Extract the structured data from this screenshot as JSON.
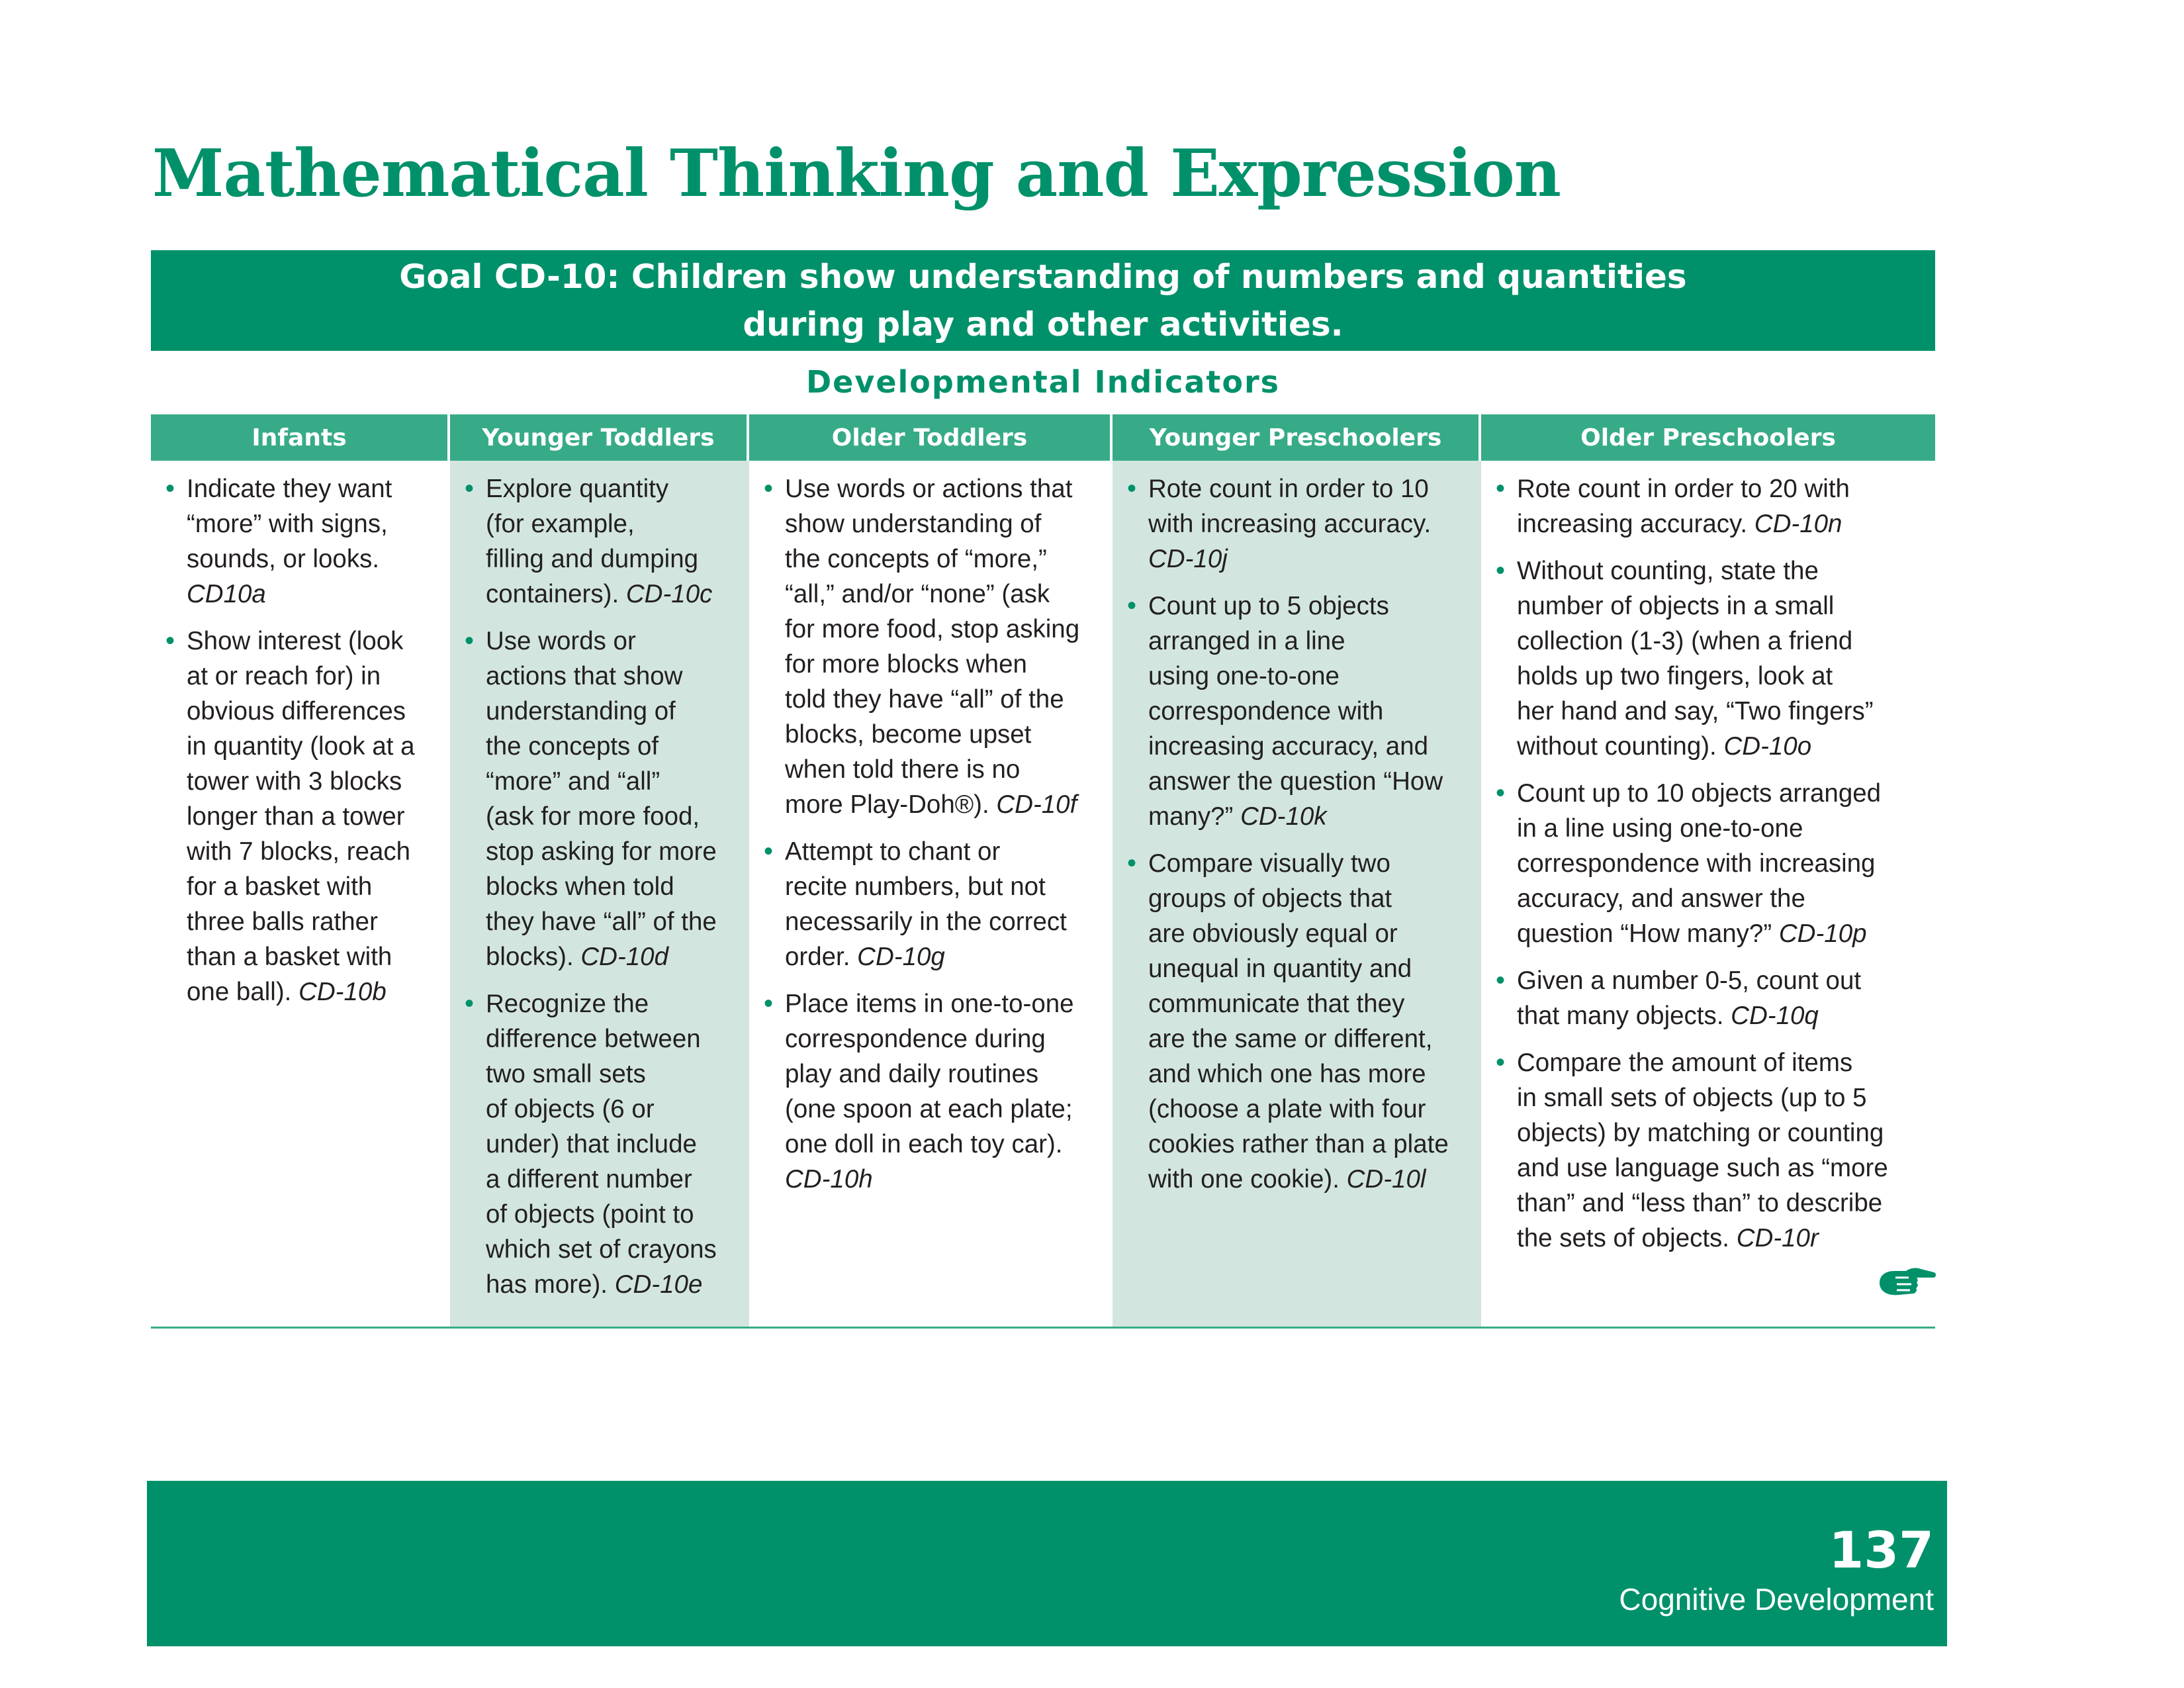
{
  "page_title": "Mathematical Thinking and Expression",
  "goal": "Goal CD-10: Children show understanding of numbers and quantities during play and other activities.",
  "section_heading": "Developmental Indicators",
  "columns": [
    {
      "header": "Infants",
      "shaded": false,
      "items": [
        {
          "text": "Indicate they want\n“more” with signs,\nsounds, or looks.\n",
          "code": "CD10a"
        },
        {
          "text": "Show interest (look\nat or reach for) in\nobvious differences\nin quantity (look at a\ntower with 3 blocks\nlonger than a tower\nwith 7 blocks, reach\nfor a basket with\nthree balls rather\nthan a basket with\none ball). ",
          "code": "CD-10b"
        }
      ]
    },
    {
      "header": "Younger Toddlers",
      "shaded": true,
      "items": [
        {
          "text": "Explore quantity\n(for example,\nfilling and dumping\ncontainers). ",
          "code": "CD-10c"
        },
        {
          "text": "Use words or\nactions that show\nunderstanding of\nthe concepts of\n“more” and “all”\n(ask for more food,\nstop asking for more\nblocks when told\nthey have “all” of the\nblocks). ",
          "code": "CD-10d"
        },
        {
          "text": "Recognize the\ndifference between\ntwo small sets\nof objects (6 or\nunder) that include\na different number\nof objects (point to\nwhich set of crayons\nhas more). ",
          "code": "CD-10e"
        }
      ]
    },
    {
      "header": "Older Toddlers",
      "shaded": false,
      "items": [
        {
          "text": "Use words or actions that\nshow understanding of\nthe concepts of “more,”\n“all,” and/or “none” (ask\nfor more food, stop asking\nfor more blocks when\ntold they have “all” of the\nblocks, become upset\nwhen told there is no\nmore Play-Doh®). ",
          "code": "CD-10f"
        },
        {
          "text": "Attempt to chant or\nrecite numbers, but not\nnecessarily in the correct\norder. ",
          "code": "CD-10g"
        },
        {
          "text": "Place items in one-to-one\ncorrespondence during\nplay and daily routines\n(one spoon at each plate;\none doll in each toy car).\n",
          "code": "CD-10h"
        }
      ]
    },
    {
      "header": "Younger Preschoolers",
      "shaded": true,
      "items": [
        {
          "text": "Rote count in order to 10\nwith increasing accuracy.\n",
          "code": "CD-10j"
        },
        {
          "text": "Count up to 5 objects\narranged in a line\nusing one-to-one\ncorrespondence with\nincreasing accuracy, and\nanswer the question “How\nmany?” ",
          "code": "CD-10k"
        },
        {
          "text": "Compare visually two\ngroups of objects that\nare obviously equal or\nunequal in quantity and\ncommunicate that they\nare the same or different,\nand which one has more\n(choose a plate with four\ncookies rather than a plate\nwith one cookie). ",
          "code": "CD-10l"
        }
      ]
    },
    {
      "header": "Older Preschoolers",
      "shaded": false,
      "items": [
        {
          "text": "Rote count in order to 20 with\nincreasing accuracy. ",
          "code": "CD-10n"
        },
        {
          "text": "Without counting, state the\nnumber of objects in a small\ncollection (1-3) (when a friend\nholds up two fingers, look at\nher hand and say, “Two fingers”\nwithout counting). ",
          "code": "CD-10o"
        },
        {
          "text": "Count up to 10 objects arranged\nin a line using one-to-one\ncorrespondence with increasing\naccuracy, and answer the\nquestion “How many?” ",
          "code": "CD-10p"
        },
        {
          "text": "Given a number 0-5, count out\nthat many objects. ",
          "code": "CD-10q"
        },
        {
          "text": "Compare the amount of items\nin small sets of objects (up to 5\nobjects) by matching or counting\nand use language such as “more\nthan” and “less than” to describe\nthe sets of objects. ",
          "code": "CD-10r"
        }
      ]
    }
  ],
  "continue_icon": "pointing-hand-icon",
  "footer": {
    "page_number": "137",
    "section": "Cognitive Development"
  },
  "colors": {
    "brand_green": "#00916a",
    "header_green": "#37ab88",
    "shaded_column": "#d2e6df"
  }
}
